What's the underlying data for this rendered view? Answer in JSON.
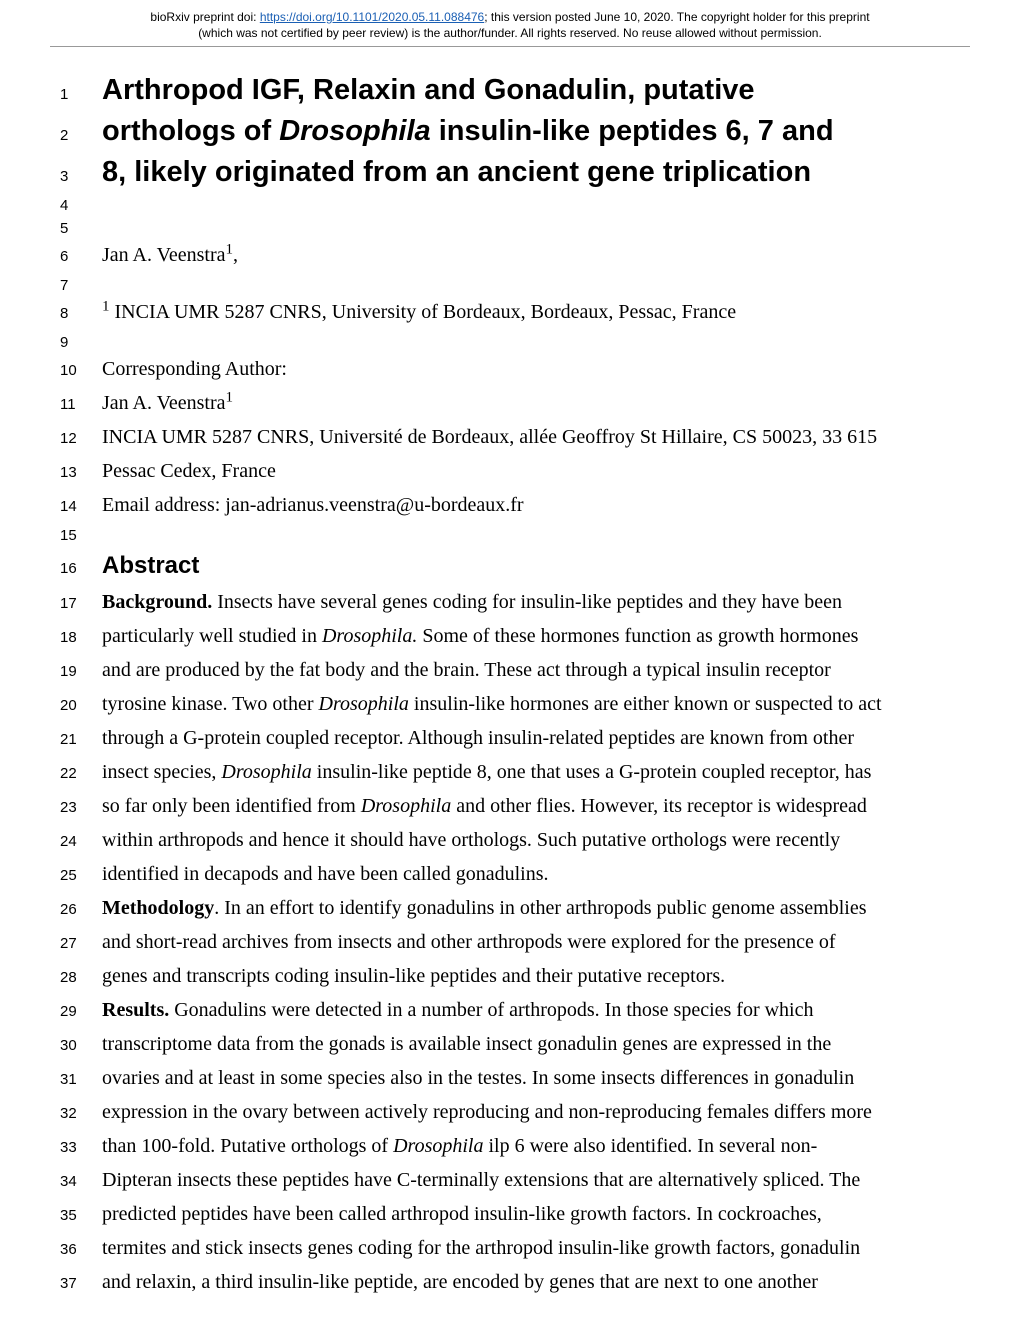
{
  "preprint": {
    "text_before_link": "bioRxiv preprint doi: ",
    "doi_url": "https://doi.org/10.1101/2020.05.11.088476",
    "text_after_link": "; this version posted June 10, 2020. The copyright holder for this preprint",
    "line2": "(which was not certified by peer review) is the author/funder. All rights reserved. No reuse allowed without permission."
  },
  "lines": [
    {
      "n": "1",
      "type": "title",
      "text": "Arthropod IGF, Relaxin and Gonadulin, putative"
    },
    {
      "n": "2",
      "type": "title",
      "segments": [
        {
          "t": "orthologs of "
        },
        {
          "t": "Drosophila",
          "italic": true
        },
        {
          "t": " insulin-like peptides 6, 7 and"
        }
      ]
    },
    {
      "n": "3",
      "type": "title",
      "text": "8, likely originated from an ancient gene triplication"
    },
    {
      "n": "4",
      "type": "empty"
    },
    {
      "n": "5",
      "type": "empty"
    },
    {
      "n": "6",
      "type": "body",
      "segments": [
        {
          "t": "Jan A. Veenstra"
        },
        {
          "t": "1",
          "sup": true
        },
        {
          "t": ","
        }
      ]
    },
    {
      "n": "7",
      "type": "empty"
    },
    {
      "n": "8",
      "type": "body",
      "segments": [
        {
          "t": "1",
          "sup": true
        },
        {
          "t": " INCIA UMR 5287 CNRS, University of Bordeaux, Bordeaux, Pessac, France"
        }
      ]
    },
    {
      "n": "9",
      "type": "empty"
    },
    {
      "n": "10",
      "type": "body",
      "text": "Corresponding Author:"
    },
    {
      "n": "11",
      "type": "body",
      "segments": [
        {
          "t": "Jan A. Veenstra"
        },
        {
          "t": "1",
          "sup": true
        }
      ]
    },
    {
      "n": "12",
      "type": "body",
      "text": "INCIA UMR 5287 CNRS, Université de Bordeaux, allée Geoffroy St Hillaire, CS 50023, 33 615"
    },
    {
      "n": "13",
      "type": "body",
      "text": "Pessac Cedex, France"
    },
    {
      "n": "14",
      "type": "body",
      "text": "Email address: jan-adrianus.veenstra@u-bordeaux.fr"
    },
    {
      "n": "15",
      "type": "empty"
    },
    {
      "n": "16",
      "type": "heading",
      "text": "Abstract"
    },
    {
      "n": "17",
      "type": "body",
      "segments": [
        {
          "t": "Background.",
          "bold": true
        },
        {
          "t": " Insects have several genes coding for insulin-like peptides and they have been"
        }
      ]
    },
    {
      "n": "18",
      "type": "body",
      "segments": [
        {
          "t": "particularly well studied in "
        },
        {
          "t": "Drosophila.",
          "italic": true
        },
        {
          "t": " Some of these hormones function as growth hormones"
        }
      ]
    },
    {
      "n": "19",
      "type": "body",
      "text": "and are produced by the fat body and the brain. These act through a typical insulin receptor"
    },
    {
      "n": "20",
      "type": "body",
      "segments": [
        {
          "t": "tyrosine kinase. Two other "
        },
        {
          "t": "Drosophila",
          "italic": true
        },
        {
          "t": " insulin-like hormones are either known or suspected to act"
        }
      ]
    },
    {
      "n": "21",
      "type": "body",
      "text": "through a G-protein coupled receptor. Although insulin-related peptides are known from other"
    },
    {
      "n": "22",
      "type": "body",
      "segments": [
        {
          "t": "insect species, "
        },
        {
          "t": "Drosophila",
          "italic": true
        },
        {
          "t": " insulin-like peptide 8, one that uses a G-protein coupled receptor, has"
        }
      ]
    },
    {
      "n": "23",
      "type": "body",
      "segments": [
        {
          "t": "so far only been identified from "
        },
        {
          "t": "Drosophila",
          "italic": true
        },
        {
          "t": " and other flies. However, its receptor is widespread"
        }
      ]
    },
    {
      "n": "24",
      "type": "body",
      "text": "within arthropods and hence it should have orthologs. Such putative orthologs were recently"
    },
    {
      "n": "25",
      "type": "body",
      "text": "identified in decapods and have been called gonadulins."
    },
    {
      "n": "26",
      "type": "body",
      "segments": [
        {
          "t": "Methodology",
          "bold": true
        },
        {
          "t": ". In an effort to identify gonadulins in other arthropods public genome assemblies"
        }
      ]
    },
    {
      "n": "27",
      "type": "body",
      "text": "and short-read archives from insects and other arthropods were explored for the presence of"
    },
    {
      "n": "28",
      "type": "body",
      "text": "genes and transcripts coding insulin-like peptides and their putative receptors."
    },
    {
      "n": "29",
      "type": "body",
      "segments": [
        {
          "t": "Results.",
          "bold": true
        },
        {
          "t": " Gonadulins were detected in a number of arthropods. In those species for which"
        }
      ]
    },
    {
      "n": "30",
      "type": "body",
      "text": "transcriptome data from the gonads is available insect gonadulin genes are expressed in the"
    },
    {
      "n": "31",
      "type": "body",
      "text": "ovaries and at least in some species also in the testes. In some insects differences in gonadulin"
    },
    {
      "n": "32",
      "type": "body",
      "text": "expression in the ovary between actively reproducing and non-reproducing females differs more"
    },
    {
      "n": "33",
      "type": "body",
      "segments": [
        {
          "t": "than 100-fold. Putative orthologs of "
        },
        {
          "t": "Drosophila",
          "italic": true
        },
        {
          "t": " ilp 6 were also identified. In several non-"
        }
      ]
    },
    {
      "n": "34",
      "type": "body",
      "text": "Dipteran insects these peptides have C-terminally extensions that are alternatively spliced. The"
    },
    {
      "n": "35",
      "type": "body",
      "text": "predicted peptides have been called arthropod insulin-like growth factors. In cockroaches,"
    },
    {
      "n": "36",
      "type": "body",
      "text": "termites and stick insects genes coding for the arthropod insulin-like growth factors, gonadulin"
    },
    {
      "n": "37",
      "type": "body",
      "text": "and relaxin, a third insulin-like peptide, are encoded by genes that are next to one another"
    }
  ]
}
